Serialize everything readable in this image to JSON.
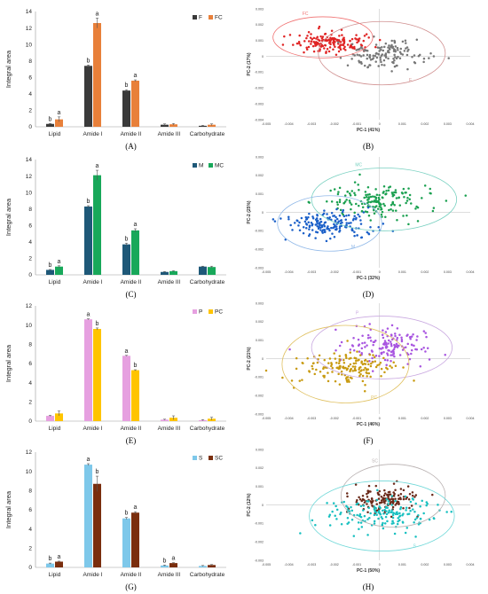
{
  "chart_data": [
    {
      "type": "bar",
      "panel": "(A)",
      "ylabel": "Integral area",
      "ylim": [
        0,
        14
      ],
      "yticks": [
        0,
        2,
        4,
        6,
        8,
        10,
        12,
        14
      ],
      "categories": [
        "Lipid",
        "Amide I",
        "Amide II",
        "Amide III",
        "Carbohydrate"
      ],
      "series": [
        {
          "name": "F",
          "color": "#3a3a3a",
          "values": [
            0.35,
            7.4,
            4.4,
            0.25,
            0.12
          ],
          "errors": [
            0.05,
            0.1,
            0.1,
            0.1,
            0.05
          ],
          "letters": [
            "b",
            "b",
            "b",
            "",
            ""
          ]
        },
        {
          "name": "FC",
          "color": "#e8803a",
          "values": [
            0.9,
            12.6,
            5.6,
            0.3,
            0.25
          ],
          "errors": [
            0.3,
            0.6,
            0.1,
            0.1,
            0.1
          ],
          "letters": [
            "a",
            "a",
            "a",
            "",
            ""
          ]
        }
      ]
    },
    {
      "type": "scatter",
      "panel": "(B)",
      "xlabel": "PC-1 (41%)",
      "ylabel": "PC-2 (17%)",
      "xlim": [
        -0.005,
        0.004
      ],
      "ylim": [
        -0.004,
        0.003
      ],
      "xticks": [
        "-0.005",
        "-0.004",
        "-0.003",
        "-0.002",
        "-0.001",
        "0",
        "0.001",
        "0.002",
        "0.003",
        "0.004"
      ],
      "yticks": [
        "0.003",
        "0.002",
        "0.001",
        "0",
        "-0.001",
        "-0.002",
        "-0.003",
        "-0.004"
      ],
      "series": [
        {
          "name": "FC",
          "color": "#e02424",
          "center": [
            -0.0022,
            0.0009
          ],
          "spread": [
            0.0013,
            0.0006
          ],
          "n": 160,
          "seed": 11
        },
        {
          "name": "F",
          "color": "#777777",
          "center": [
            0.0002,
            0.0001
          ],
          "spread": [
            0.0017,
            0.0008
          ],
          "n": 140,
          "seed": 12
        }
      ],
      "ellipses": [
        {
          "name": "FC",
          "color": "#f07070",
          "center": [
            -0.0025,
            0.0012
          ],
          "radii": [
            0.0022,
            0.0013
          ]
        },
        {
          "name": "F",
          "color": "#d09090",
          "center": [
            0.0001,
            0.0002
          ],
          "radii": [
            0.0028,
            0.002
          ]
        }
      ]
    },
    {
      "type": "bar",
      "panel": "(C)",
      "ylabel": "Integral area",
      "ylim": [
        0,
        14
      ],
      "yticks": [
        0,
        2,
        4,
        6,
        8,
        10,
        12,
        14
      ],
      "categories": [
        "Lipid",
        "Amide I",
        "Amide II",
        "Amide III",
        "Carbohydrate"
      ],
      "series": [
        {
          "name": "M",
          "color": "#1e5878",
          "values": [
            0.6,
            8.3,
            3.7,
            0.35,
            1.0
          ],
          "errors": [
            0.05,
            0.1,
            0.15,
            0.05,
            0.05
          ],
          "letters": [
            "b",
            "b",
            "b",
            "",
            ""
          ]
        },
        {
          "name": "MC",
          "color": "#18a85a",
          "values": [
            1.0,
            12.1,
            5.4,
            0.45,
            0.95
          ],
          "errors": [
            0.1,
            0.6,
            0.2,
            0.05,
            0.1
          ],
          "letters": [
            "a",
            "a",
            "a",
            "",
            ""
          ]
        }
      ]
    },
    {
      "type": "scatter",
      "panel": "(D)",
      "xlabel": "PC-1 (32%)",
      "ylabel": "PC-2 (25%)",
      "xlim": [
        -0.005,
        0.004
      ],
      "ylim": [
        -0.003,
        0.003
      ],
      "xticks": [
        "-0.005",
        "-0.004",
        "-0.003",
        "-0.002",
        "-0.001",
        "0",
        "0.001",
        "0.002",
        "0.003",
        "0.004"
      ],
      "yticks": [
        "0.003",
        "0.002",
        "0.001",
        "0",
        "-0.001",
        "-0.002",
        "-0.003"
      ],
      "series": [
        {
          "name": "MC",
          "color": "#1aa050",
          "center": [
            -0.0001,
            0.0006
          ],
          "spread": [
            0.0022,
            0.0008
          ],
          "n": 170,
          "seed": 21
        },
        {
          "name": "M",
          "color": "#1a5fc8",
          "center": [
            -0.0022,
            -0.0007
          ],
          "spread": [
            0.0017,
            0.0007
          ],
          "n": 170,
          "seed": 22
        }
      ],
      "ellipses": [
        {
          "name": "MC",
          "color": "#78d0c0",
          "center": [
            0.0002,
            0.0007
          ],
          "radii": [
            0.0032,
            0.0017
          ]
        },
        {
          "name": "M",
          "color": "#90b8e8",
          "center": [
            -0.0022,
            -0.0006
          ],
          "radii": [
            0.0023,
            0.0015
          ]
        }
      ]
    },
    {
      "type": "bar",
      "panel": "(E)",
      "ylabel": "Integral area",
      "ylim": [
        0,
        12
      ],
      "yticks": [
        0,
        2,
        4,
        6,
        8,
        10,
        12
      ],
      "categories": [
        "Lipid",
        "Amide I",
        "Amide II",
        "Amide III",
        "Carbohydrate"
      ],
      "series": [
        {
          "name": "P",
          "color": "#e6a0e0",
          "values": [
            0.55,
            10.6,
            6.8,
            0.15,
            0.1
          ],
          "errors": [
            0.05,
            0.05,
            0.05,
            0.05,
            0.05
          ],
          "letters": [
            "",
            "a",
            "a",
            "",
            ""
          ]
        },
        {
          "name": "PC",
          "color": "#ffc400",
          "values": [
            0.8,
            9.6,
            5.3,
            0.35,
            0.25
          ],
          "errors": [
            0.25,
            0.1,
            0.05,
            0.2,
            0.15
          ],
          "letters": [
            "",
            "b",
            "b",
            "",
            ""
          ]
        }
      ]
    },
    {
      "type": "scatter",
      "panel": "(F)",
      "xlabel": "PC-1 (46%)",
      "ylabel": "PC-2 (21%)",
      "xlim": [
        -0.005,
        0.004
      ],
      "ylim": [
        -0.003,
        0.003
      ],
      "xticks": [
        "-0.005",
        "-0.004",
        "-0.003",
        "-0.002",
        "-0.001",
        "0",
        "0.001",
        "0.002",
        "0.003",
        "0.004"
      ],
      "yticks": [
        "0.003",
        "0.002",
        "0.001",
        "0",
        "-0.001",
        "-0.002",
        "-0.003"
      ],
      "series": [
        {
          "name": "P",
          "color": "#a855e0",
          "center": [
            0.0003,
            0.0007
          ],
          "spread": [
            0.0019,
            0.0008
          ],
          "n": 150,
          "seed": 31
        },
        {
          "name": "PC",
          "color": "#c89a10",
          "center": [
            -0.0015,
            -0.0005
          ],
          "spread": [
            0.0019,
            0.0008
          ],
          "n": 160,
          "seed": 32
        }
      ],
      "ellipses": [
        {
          "name": "P",
          "color": "#c9a8e0",
          "center": [
            0.0001,
            0.0006
          ],
          "radii": [
            0.0031,
            0.0017
          ]
        },
        {
          "name": "PC",
          "color": "#e0c060",
          "center": [
            -0.0015,
            -0.0003
          ],
          "radii": [
            0.0028,
            0.0021
          ]
        }
      ]
    },
    {
      "type": "bar",
      "panel": "(G)",
      "ylabel": "Integral area",
      "ylim": [
        0,
        12
      ],
      "yticks": [
        0,
        2,
        4,
        6,
        8,
        10,
        12
      ],
      "categories": [
        "Lipid",
        "Amide I",
        "Amide II",
        "Amide III",
        "Carbohydrate"
      ],
      "series": [
        {
          "name": "S",
          "color": "#7ec8ea",
          "values": [
            0.4,
            10.7,
            5.1,
            0.2,
            0.15
          ],
          "errors": [
            0.05,
            0.1,
            0.1,
            0.05,
            0.05
          ],
          "letters": [
            "b",
            "a",
            "b",
            "b",
            ""
          ]
        },
        {
          "name": "SC",
          "color": "#7a2e0e",
          "values": [
            0.6,
            8.7,
            5.7,
            0.45,
            0.25
          ],
          "errors": [
            0.05,
            0.8,
            0.1,
            0.05,
            0.05
          ],
          "letters": [
            "a",
            "b",
            "a",
            "a",
            ""
          ]
        }
      ]
    },
    {
      "type": "scatter",
      "panel": "(H)",
      "xlabel": "PC-1 (50%)",
      "ylabel": "PC-2 (12%)",
      "xlim": [
        -0.005,
        0.004
      ],
      "ylim": [
        -0.003,
        0.003
      ],
      "xticks": [
        "-0.005",
        "-0.004",
        "-0.003",
        "-0.002",
        "-0.001",
        "0",
        "0.001",
        "0.002",
        "0.003",
        "0.004"
      ],
      "yticks": [
        "0.003",
        "0.002",
        "0.001",
        "0",
        "-0.001",
        "-0.002",
        "-0.003"
      ],
      "series": [
        {
          "name": "SC",
          "color": "#6a2a1a",
          "center": [
            0.0003,
            0.0003
          ],
          "spread": [
            0.0014,
            0.0007
          ],
          "n": 140,
          "seed": 41
        },
        {
          "name": "S",
          "color": "#18c0c0",
          "center": [
            0.0001,
            -0.0005
          ],
          "spread": [
            0.0023,
            0.0009
          ],
          "n": 170,
          "seed": 42
        }
      ],
      "ellipses": [
        {
          "name": "SC",
          "color": "#b8b0b0",
          "center": [
            0.0006,
            0.0005
          ],
          "radii": [
            0.0023,
            0.0017
          ]
        },
        {
          "name": "S",
          "color": "#70d8d8",
          "center": [
            0.0001,
            -0.0006
          ],
          "radii": [
            0.0032,
            0.0019
          ]
        }
      ]
    }
  ]
}
